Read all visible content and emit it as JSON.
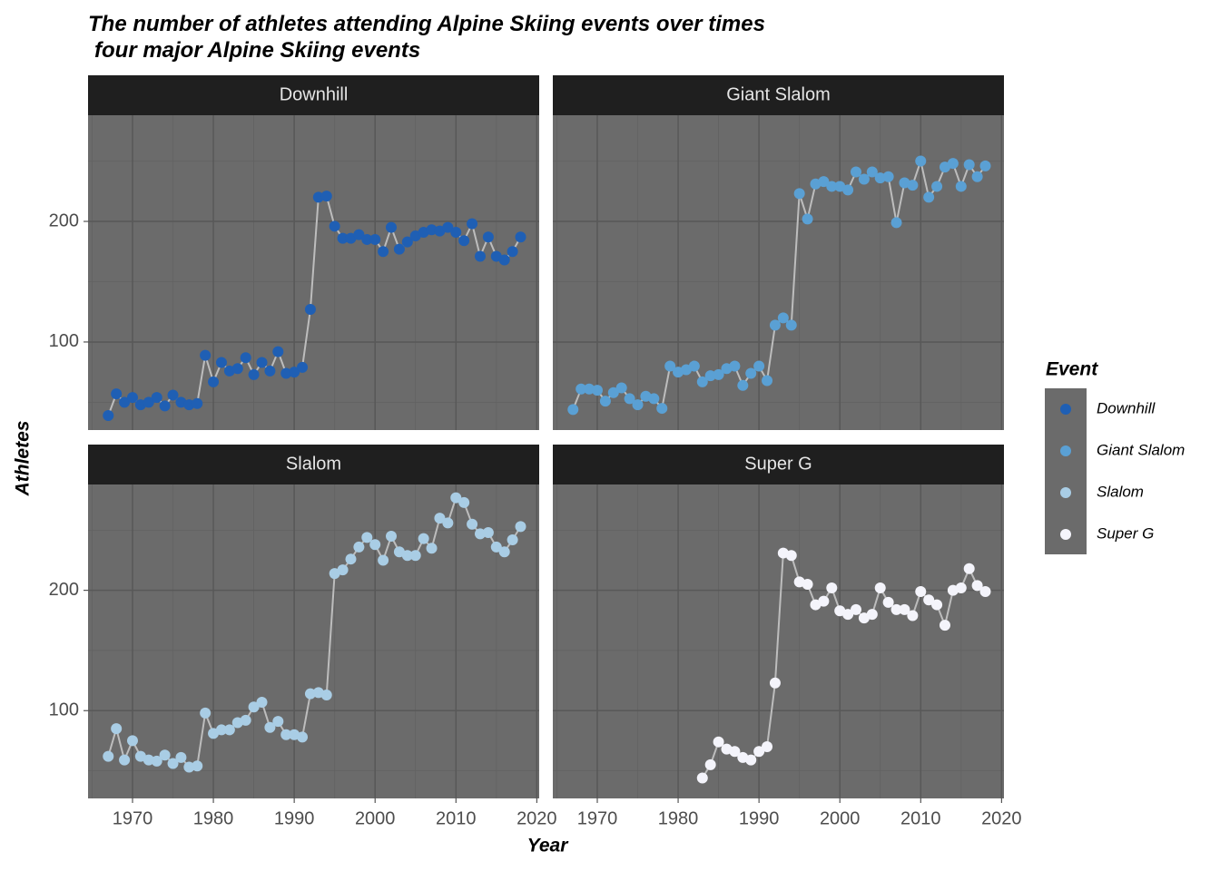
{
  "title": "The number of athletes attending Alpine Skiing events over times",
  "subtitle": "four major Alpine Skiing events",
  "xlabel": "Year",
  "ylabel": "Athletes",
  "legend_title": "Event",
  "chart_data": [
    {
      "type": "line",
      "title": "Downhill",
      "x": [
        1967,
        1968,
        1969,
        1970,
        1971,
        1972,
        1973,
        1974,
        1975,
        1976,
        1977,
        1978,
        1979,
        1980,
        1981,
        1982,
        1983,
        1984,
        1985,
        1986,
        1987,
        1988,
        1989,
        1990,
        1991,
        1992,
        1993,
        1994,
        1995,
        1996,
        1997,
        1998,
        1999,
        2000,
        2001,
        2002,
        2003,
        2004,
        2005,
        2006,
        2007,
        2008,
        2009,
        2010,
        2011,
        2012,
        2013,
        2014,
        2015,
        2016,
        2017,
        2018
      ],
      "series": [
        {
          "name": "Downhill",
          "color": "#1f5fb4",
          "values": [
            39,
            57,
            50,
            54,
            48,
            50,
            54,
            47,
            56,
            50,
            48,
            49,
            89,
            67,
            83,
            76,
            78,
            87,
            73,
            83,
            76,
            92,
            74,
            75,
            79,
            127,
            220,
            221,
            196,
            186,
            186,
            189,
            185,
            185,
            175,
            195,
            177,
            183,
            188,
            191,
            193,
            192,
            195,
            191,
            184,
            198,
            171,
            187,
            171,
            168,
            175,
            187
          ]
        }
      ],
      "xlim": [
        1964.5,
        2020.3
      ],
      "ylim": [
        27,
        288
      ],
      "xticks": [
        1970,
        1980,
        1990,
        2000,
        2010,
        2020
      ],
      "yticks": [
        100,
        200
      ],
      "grid": true
    },
    {
      "type": "line",
      "title": "Giant Slalom",
      "x": [
        1967,
        1968,
        1969,
        1970,
        1971,
        1972,
        1973,
        1974,
        1975,
        1976,
        1977,
        1978,
        1979,
        1980,
        1981,
        1982,
        1983,
        1984,
        1985,
        1986,
        1987,
        1988,
        1989,
        1990,
        1991,
        1992,
        1993,
        1994,
        1995,
        1996,
        1997,
        1998,
        1999,
        2000,
        2001,
        2002,
        2003,
        2004,
        2005,
        2006,
        2007,
        2008,
        2009,
        2010,
        2011,
        2012,
        2013,
        2014,
        2015,
        2016,
        2017,
        2018
      ],
      "series": [
        {
          "name": "Giant Slalom",
          "color": "#5aa0d4",
          "values": [
            44,
            61,
            61,
            60,
            51,
            58,
            62,
            53,
            48,
            55,
            53,
            45,
            80,
            75,
            77,
            80,
            67,
            72,
            73,
            78,
            80,
            64,
            74,
            80,
            68,
            114,
            120,
            114,
            223,
            202,
            231,
            233,
            229,
            229,
            226,
            241,
            235,
            241,
            236,
            237,
            199,
            232,
            230,
            250,
            220,
            229,
            245,
            248,
            229,
            247,
            237,
            246
          ]
        }
      ],
      "xlim": [
        1964.5,
        2020.3
      ],
      "ylim": [
        27,
        288
      ],
      "xticks": [
        1970,
        1980,
        1990,
        2000,
        2010,
        2020
      ],
      "yticks": [
        100,
        200
      ],
      "grid": true
    },
    {
      "type": "line",
      "title": "Slalom",
      "x": [
        1967,
        1968,
        1969,
        1970,
        1971,
        1972,
        1973,
        1974,
        1975,
        1976,
        1977,
        1978,
        1979,
        1980,
        1981,
        1982,
        1983,
        1984,
        1985,
        1986,
        1987,
        1988,
        1989,
        1990,
        1991,
        1992,
        1993,
        1994,
        1995,
        1996,
        1997,
        1998,
        1999,
        2000,
        2001,
        2002,
        2003,
        2004,
        2005,
        2006,
        2007,
        2008,
        2009,
        2010,
        2011,
        2012,
        2013,
        2014,
        2015,
        2016,
        2017,
        2018
      ],
      "series": [
        {
          "name": "Slalom",
          "color": "#a9cde5",
          "values": [
            62,
            85,
            59,
            75,
            62,
            59,
            58,
            63,
            56,
            61,
            53,
            54,
            98,
            81,
            84,
            84,
            90,
            92,
            103,
            107,
            86,
            91,
            80,
            80,
            78,
            114,
            115,
            113,
            214,
            217,
            226,
            236,
            244,
            238,
            225,
            245,
            232,
            229,
            229,
            243,
            235,
            260,
            256,
            277,
            273,
            255,
            247,
            248,
            236,
            232,
            242,
            253
          ]
        }
      ],
      "xlim": [
        1964.5,
        2020.3
      ],
      "ylim": [
        27,
        288
      ],
      "xticks": [
        1970,
        1980,
        1990,
        2000,
        2010,
        2020
      ],
      "yticks": [
        100,
        200
      ],
      "grid": true
    },
    {
      "type": "line",
      "title": "Super G",
      "x": [
        1983,
        1984,
        1985,
        1986,
        1987,
        1988,
        1989,
        1990,
        1991,
        1992,
        1993,
        1994,
        1995,
        1996,
        1997,
        1998,
        1999,
        2000,
        2001,
        2002,
        2003,
        2004,
        2005,
        2006,
        2007,
        2008,
        2009,
        2010,
        2011,
        2012,
        2013,
        2014,
        2015,
        2016,
        2017,
        2018
      ],
      "series": [
        {
          "name": "Super G",
          "color": "#f4f4fb",
          "values": [
            44,
            55,
            74,
            68,
            66,
            61,
            59,
            66,
            70,
            123,
            231,
            229,
            207,
            205,
            188,
            191,
            202,
            183,
            180,
            184,
            177,
            180,
            202,
            190,
            184,
            184,
            179,
            199,
            192,
            188,
            171,
            200,
            202,
            218,
            204,
            199
          ]
        }
      ],
      "xlim": [
        1964.5,
        2020.3
      ],
      "ylim": [
        27,
        288
      ],
      "xticks": [
        1970,
        1980,
        1990,
        2000,
        2010,
        2020
      ],
      "yticks": [
        100,
        200
      ],
      "grid": true
    }
  ]
}
